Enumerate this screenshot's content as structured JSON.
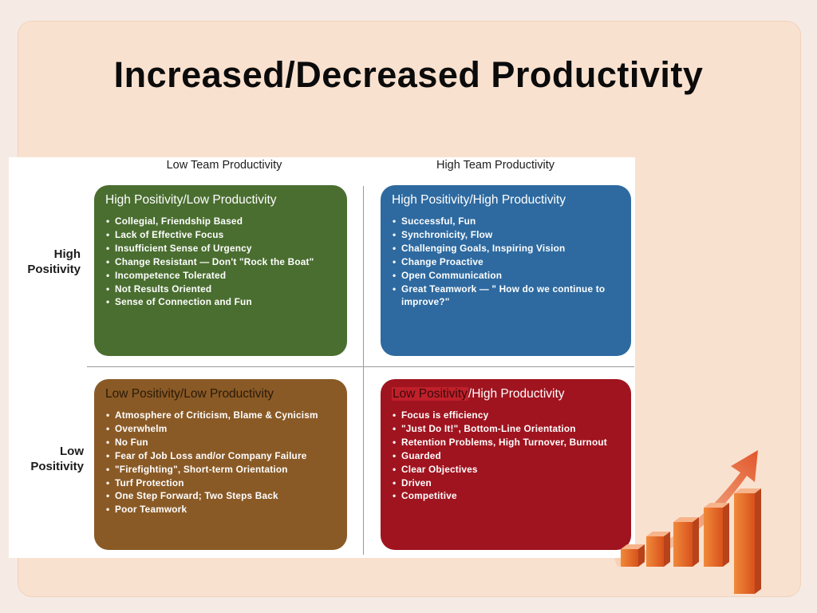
{
  "title": "Increased/Decreased Productivity",
  "columns": {
    "low": "Low Team Productivity",
    "high": "High Team Productivity"
  },
  "rows": {
    "high_line1": "High",
    "high_line2": "Positivity",
    "low_line1": "Low",
    "low_line2": "Positivity"
  },
  "quadrants": {
    "top_left": {
      "title": "High Positivity/Low Productivity",
      "color": "#4a6e30",
      "items": [
        "Collegial, Friendship Based",
        "Lack of Effective Focus",
        "Insufficient Sense of Urgency",
        "Change Resistant — Don't \"Rock the Boat\"",
        "Incompetence Tolerated",
        "Not Results Oriented",
        "Sense of Connection and Fun"
      ]
    },
    "top_right": {
      "title": "High Positivity/High Productivity",
      "color": "#2e6aa0",
      "items": [
        "Successful, Fun",
        "Synchronicity, Flow",
        "Challenging Goals, Inspiring Vision",
        "Change Proactive",
        "Open Communication",
        "Great Teamwork — \" How do we continue to improve?\""
      ]
    },
    "bottom_left": {
      "title": "Low Positivity/Low Productivity",
      "color": "#8a5a26",
      "items": [
        "Atmosphere of Criticism, Blame & Cynicism",
        "Overwhelm",
        "No Fun",
        "Fear of Job Loss and/or Company Failure",
        "\"Firefighting\", Short-term Orientation",
        "Turf Protection",
        "One Step Forward; Two Steps Back",
        "Poor Teamwork"
      ]
    },
    "bottom_right": {
      "title_highlight": "Low Positivity",
      "title_rest": "/High Productivity",
      "color": "#a0141f",
      "items": [
        "Focus is efficiency",
        "\"Just Do It!\", Bottom-Line Orientation",
        "Retention Problems, High Turnover, Burnout",
        "Guarded",
        "Clear Objectives",
        "Driven",
        "Competitive"
      ]
    }
  },
  "colors": {
    "background": "#f5ebe4",
    "panel": "#f9e1d0",
    "graphic_orange": "#e8642a"
  }
}
